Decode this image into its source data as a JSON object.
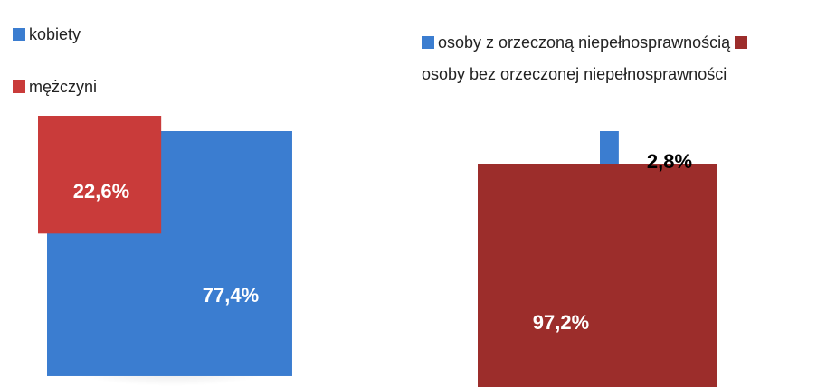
{
  "chart_data": [
    {
      "type": "pie",
      "series": [
        {
          "name": "kobiety",
          "color": "#3b7dd0",
          "values": [
            77.4
          ],
          "value_labels": [
            "77,4%"
          ]
        },
        {
          "name": "mężczyni",
          "color": "#c93b3a",
          "values": [
            22.6
          ],
          "value_labels": [
            "22,6%"
          ]
        }
      ]
    },
    {
      "type": "pie",
      "series": [
        {
          "name": "osoby z orzeczoną niepełnosprawnością",
          "color": "#3b7dd0",
          "values": [
            2.8
          ],
          "value_labels": [
            "2,8%"
          ]
        },
        {
          "name": "osoby bez orzeczonej niepełnosprawności",
          "color": "#9c2d2b",
          "values": [
            97.2
          ],
          "value_labels": [
            "97,2%"
          ]
        }
      ]
    }
  ]
}
